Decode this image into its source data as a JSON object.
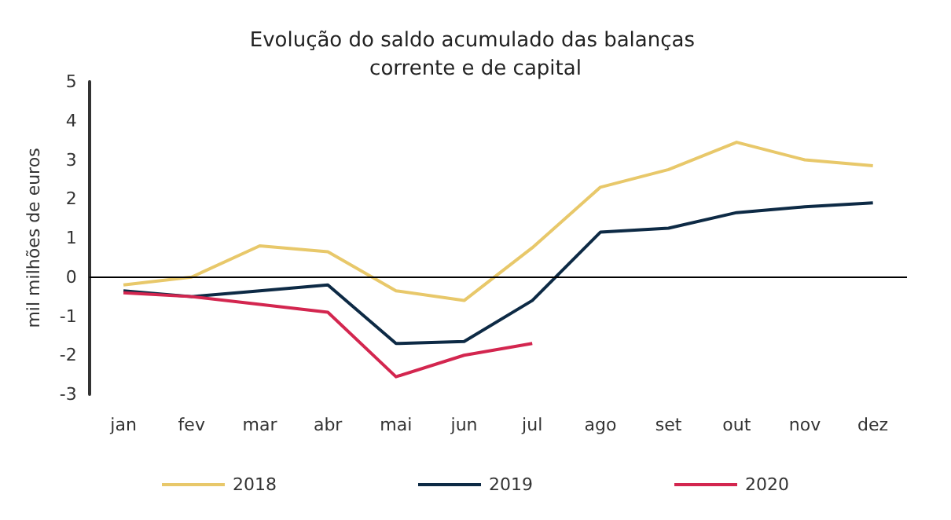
{
  "chart_data": {
    "type": "line",
    "title": "Evolução do saldo acumulado das balanças corrente e de capital",
    "ylabel": "mil milhões de euros",
    "categories": [
      "jan",
      "fev",
      "mar",
      "abr",
      "mai",
      "jun",
      "jul",
      "ago",
      "set",
      "out",
      "nov",
      "dez"
    ],
    "series": [
      {
        "name": "2018",
        "color": "#e8c86a",
        "values": [
          -0.2,
          0,
          0.8,
          0.65,
          -0.35,
          -0.6,
          0.75,
          2.3,
          2.75,
          3.45,
          3.0,
          2.85
        ]
      },
      {
        "name": "2019",
        "color": "#0d2a45",
        "values": [
          -0.35,
          -0.5,
          -0.35,
          -0.2,
          -1.7,
          -1.65,
          -0.6,
          1.15,
          1.25,
          1.65,
          1.8,
          1.9
        ]
      },
      {
        "name": "2020",
        "color": "#d3264f",
        "values": [
          -0.4,
          -0.5,
          -0.7,
          -0.9,
          -2.55,
          -2.0,
          -1.7,
          null,
          null,
          null,
          null,
          null
        ]
      }
    ],
    "ylim": [
      -3,
      5
    ],
    "yticks": [
      -3,
      -2,
      -1,
      0,
      1,
      2,
      3,
      4,
      5
    ],
    "grid": false,
    "ref_lines": [
      {
        "axis": "y",
        "value": 0,
        "color": "#000000"
      }
    ],
    "legend": "bottom",
    "marker": "none",
    "line_style": "solid"
  }
}
